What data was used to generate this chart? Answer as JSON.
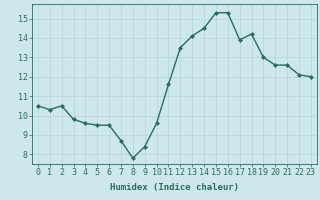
{
  "x": [
    0,
    1,
    2,
    3,
    4,
    5,
    6,
    7,
    8,
    9,
    10,
    11,
    12,
    13,
    14,
    15,
    16,
    17,
    18,
    19,
    20,
    21,
    22,
    23
  ],
  "y": [
    10.5,
    10.3,
    10.5,
    9.8,
    9.6,
    9.5,
    9.5,
    8.7,
    7.8,
    8.4,
    9.6,
    11.6,
    13.5,
    14.1,
    14.5,
    15.3,
    15.3,
    13.9,
    14.2,
    13.0,
    12.6,
    12.6,
    12.1,
    12.0
  ],
  "line_color": "#2e6b5e",
  "marker": "D",
  "marker_size": 2,
  "bg_color": "#cde8ea",
  "grid_color": "#b8d8da",
  "xlabel": "Humidex (Indice chaleur)",
  "xlim": [
    -0.5,
    23.5
  ],
  "ylim": [
    7.5,
    15.75
  ],
  "yticks": [
    8,
    9,
    10,
    11,
    12,
    13,
    14,
    15
  ],
  "xticks": [
    0,
    1,
    2,
    3,
    4,
    5,
    6,
    7,
    8,
    9,
    10,
    11,
    12,
    13,
    14,
    15,
    16,
    17,
    18,
    19,
    20,
    21,
    22,
    23
  ],
  "xlabel_fontsize": 6.5,
  "tick_fontsize": 6,
  "line_width": 1.0
}
